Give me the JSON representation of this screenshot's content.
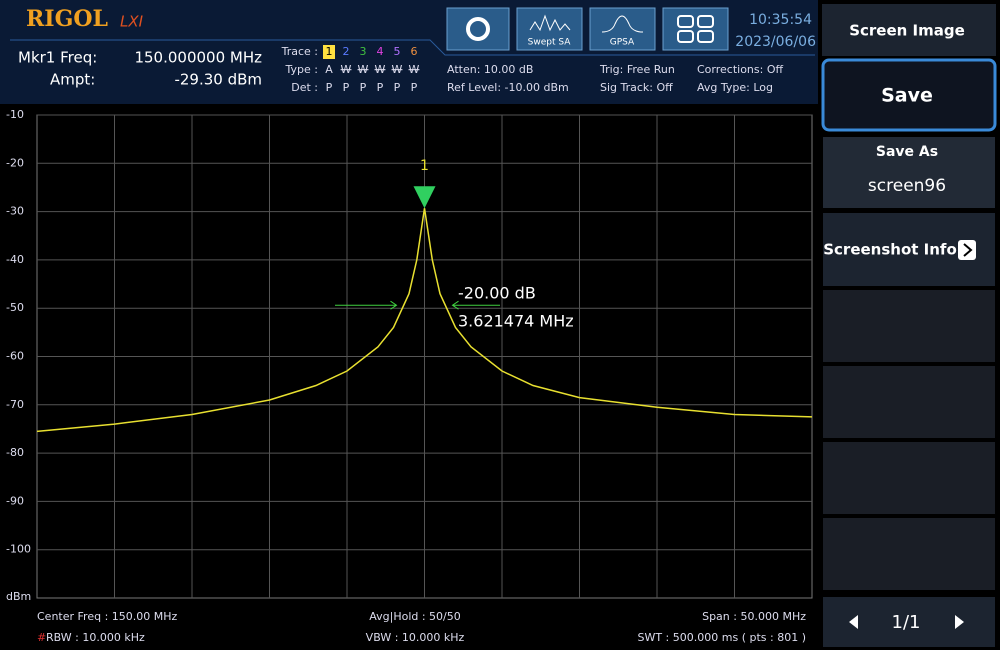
{
  "header": {
    "logo": "RIGOL",
    "lxi": "LXI",
    "marker": {
      "freq_label": "Mkr1 Freq:",
      "freq": "150.000000 MHz",
      "ampt_label": "Ampt:",
      "ampt": "-29.30 dBm"
    },
    "trace_table": {
      "trace_label": "Trace :",
      "type_label": "Type :",
      "det_label": "Det :",
      "traces": [
        "1",
        "2",
        "3",
        "4",
        "5",
        "6"
      ],
      "types": [
        "A",
        "W",
        "W",
        "W",
        "W",
        "W"
      ],
      "dets": [
        "P",
        "P",
        "P",
        "P",
        "P",
        "P"
      ]
    },
    "status": [
      "Atten: 10.00 dB",
      "Ref Level: -10.00 dBm",
      "Trig: Free Run",
      "Sig Track: Off",
      "Corrections: Off",
      "Avg Type: Log"
    ],
    "modes": [
      "Swept SA",
      "GPSA"
    ],
    "time": "10:35:54",
    "date": "2023/06/06"
  },
  "plot": {
    "y_unit": "dBm",
    "ylim": [
      -110,
      -10
    ],
    "yticks": [
      -10,
      -20,
      -30,
      -40,
      -50,
      -60,
      -70,
      -80,
      -90,
      -100
    ],
    "xlim": [
      125,
      175
    ],
    "trace": {
      "x": [
        125,
        130,
        135,
        140,
        143,
        145,
        147,
        148,
        149,
        149.5,
        150,
        150.5,
        151,
        152,
        153,
        155,
        157,
        160,
        165,
        170,
        175
      ],
      "values": [
        -75.5,
        -74,
        -72,
        -69,
        -66,
        -63,
        -58,
        -54,
        -47,
        -40,
        -29.3,
        -40,
        -47,
        -54,
        -58,
        -63,
        -66,
        -68.5,
        -70.5,
        -72,
        -72.5
      ]
    },
    "marker_label": "1",
    "delta": "-20.00 dB",
    "bandwidth": "3.621474 MHz"
  },
  "footer": {
    "center": "Center Freq : 150.00 MHz",
    "rbw_flag": "#",
    "rbw": "RBW : 10.000 kHz",
    "avg": "Avg|Hold : 50/50",
    "vbw": "VBW : 10.000 kHz",
    "span": "Span : 50.000 MHz",
    "swt": "SWT : 500.000 ms ( pts : 801 )"
  },
  "softkeys": {
    "title": "Screen Image",
    "save": "Save",
    "save_as": "Save As",
    "file": "screen96",
    "info": "Screenshot Info",
    "page": "1/1"
  }
}
